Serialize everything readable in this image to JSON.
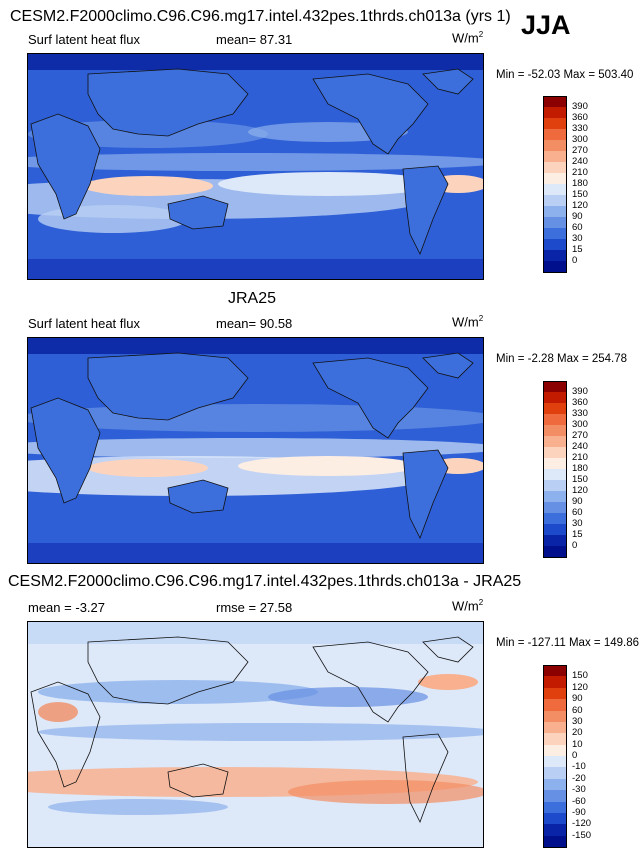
{
  "season": "JJA",
  "panels": [
    {
      "id": "model",
      "heading": "CESM2.F2000climo.C96.C96.mg17.intel.432pes.1thrds.ch013a (yrs 1)",
      "left_label": "Surf latent heat flux",
      "mean_label": "mean=",
      "mean_value": "87.31",
      "units": "W/m",
      "units_sup": "2",
      "minmax": "Min = -52.03 Max = 503.40",
      "colorbar": {
        "levels": [
          "390",
          "360",
          "330",
          "300",
          "270",
          "240",
          "210",
          "180",
          "150",
          "120",
          "90",
          "60",
          "30",
          "15",
          "0"
        ],
        "colors": [
          "#8b0000",
          "#c21b00",
          "#e0400e",
          "#ef6a3c",
          "#f38e64",
          "#f8b08f",
          "#fcd4bd",
          "#fdeee4",
          "#dde8f9",
          "#b9d0f4",
          "#8db1ec",
          "#6690e3",
          "#3c6fdb",
          "#1c4acb",
          "#0a24a8",
          "#00108c"
        ]
      }
    },
    {
      "id": "obs",
      "heading": "JRA25",
      "left_label": "Surf latent heat flux",
      "mean_label": "mean=",
      "mean_value": "90.58",
      "units": "W/m",
      "units_sup": "2",
      "minmax": "Min = -2.28 Max = 254.78",
      "colorbar": {
        "levels": [
          "390",
          "360",
          "330",
          "300",
          "270",
          "240",
          "210",
          "180",
          "150",
          "120",
          "90",
          "60",
          "30",
          "15",
          "0"
        ],
        "colors": [
          "#8b0000",
          "#c21b00",
          "#e0400e",
          "#ef6a3c",
          "#f38e64",
          "#f8b08f",
          "#fcd4bd",
          "#fdeee4",
          "#dde8f9",
          "#b9d0f4",
          "#8db1ec",
          "#6690e3",
          "#3c6fdb",
          "#1c4acb",
          "#0a24a8",
          "#00108c"
        ]
      }
    },
    {
      "id": "diff",
      "heading": "CESM2.F2000climo.C96.C96.mg17.intel.432pes.1thrds.ch013a - JRA25",
      "left_label": "mean =",
      "mean_label": "",
      "mean_value": "-3.27",
      "rmse_label": "rmse =",
      "rmse_value": "27.58",
      "units": "W/m",
      "units_sup": "2",
      "minmax": "Min = -127.11 Max = 149.86",
      "colorbar": {
        "levels": [
          "150",
          "120",
          "90",
          "60",
          "30",
          "20",
          "10",
          "0",
          "-10",
          "-20",
          "-30",
          "-60",
          "-90",
          "-120",
          "-150"
        ],
        "colors": [
          "#8b0000",
          "#c21b00",
          "#e0400e",
          "#ef6a3c",
          "#f38e64",
          "#f8b08f",
          "#fcd4bd",
          "#fdeee4",
          "#dde8f9",
          "#b9d0f4",
          "#8db1ec",
          "#6690e3",
          "#3c6fdb",
          "#1c4acb",
          "#0a24a8",
          "#00108c"
        ]
      }
    }
  ]
}
